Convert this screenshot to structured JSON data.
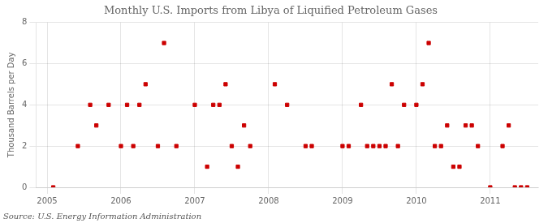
{
  "chart_data": {
    "type": "scatter",
    "title": "Monthly U.S. Imports from Libya of Liquified Petroleum Gases",
    "y_label": "Thousand Barrels per Day",
    "annotations": [
      "Source: U.S. Energy Information Administration"
    ],
    "x": [
      2005.0833333333333,
      2005.4166666666667,
      2005.5833333333333,
      2005.6666666666667,
      2005.8333333333333,
      2006,
      2006.0833333333333,
      2006.1666666666667,
      2006.25,
      2006.3333333333333,
      2006.5,
      2006.5833333333333,
      2006.75,
      2007,
      2007.1666666666667,
      2007.25,
      2007.3333333333333,
      2007.4166666666667,
      2007.5,
      2007.5833333333333,
      2007.6666666666667,
      2007.75,
      2008.0833333333333,
      2008.25,
      2008.5,
      2008.5833333333333,
      2009,
      2009.0833333333333,
      2009.25,
      2009.3333333333333,
      2009.4166666666667,
      2009.5,
      2009.5833333333333,
      2009.6666666666667,
      2009.75,
      2009.8333333333333,
      2010,
      2010.0833333333333,
      2010.1666666666667,
      2010.25,
      2010.3333333333333,
      2010.4166666666667,
      2010.5,
      2010.5833333333333,
      2010.6666666666667,
      2010.75,
      2010.8333333333333,
      2011,
      2011.1666666666667,
      2011.25,
      2011.3333333333333,
      2011.4166666666667,
      2011.5
    ],
    "values": [
      0,
      2,
      4,
      3,
      4,
      2,
      4,
      2,
      4,
      5,
      2,
      7,
      2,
      4,
      1,
      4,
      4,
      5,
      2,
      1,
      3,
      2,
      5,
      4,
      2,
      2,
      2,
      2,
      4,
      2,
      2,
      2,
      2,
      5,
      2,
      4,
      4,
      5,
      7,
      2,
      2,
      3,
      1,
      1,
      3,
      3,
      2,
      0,
      2,
      3,
      0,
      0,
      0
    ],
    "color": "#cc0000",
    "marker": "square",
    "xlim": [
      2004.85,
      2011.65
    ],
    "xticks": [
      2005,
      2006,
      2007,
      2008,
      2009,
      2010,
      2011
    ],
    "ylim": [
      0,
      8
    ],
    "yticks": [
      0,
      2,
      4,
      6,
      8
    ],
    "grid": true
  }
}
